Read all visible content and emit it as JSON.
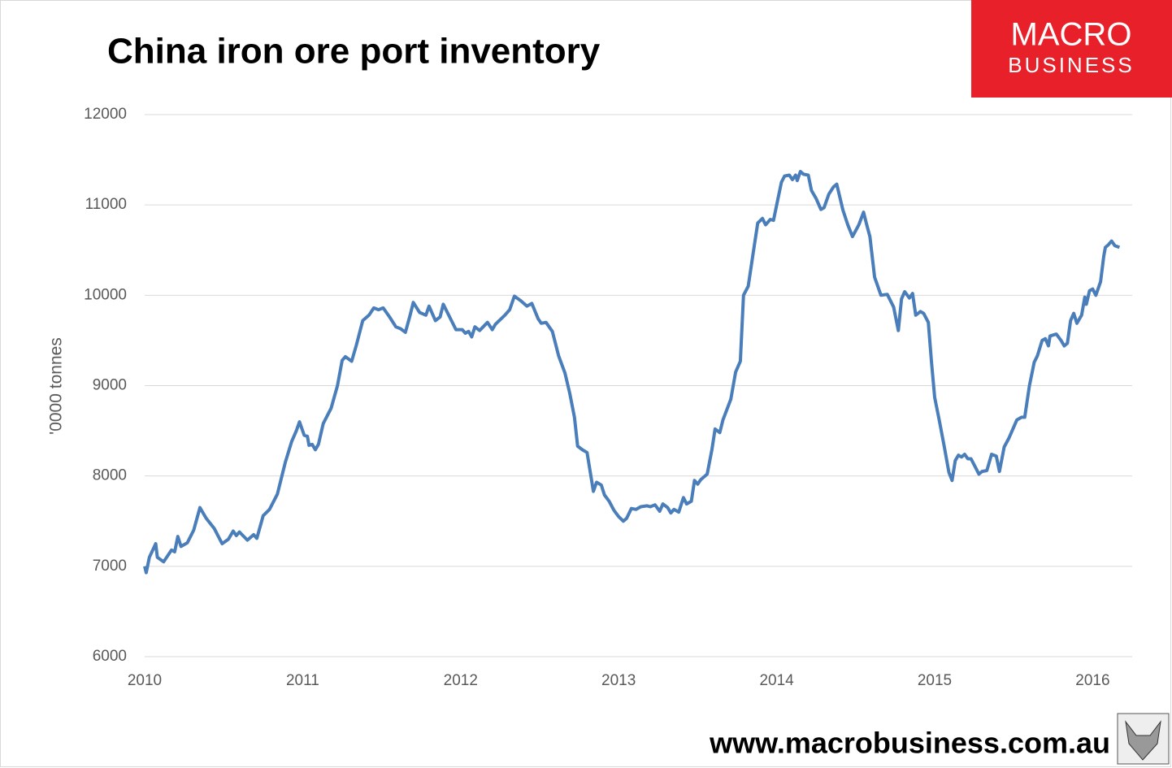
{
  "chart_data": {
    "type": "line",
    "title": "China iron ore port inventory",
    "ylabel": "'0000 tonnes",
    "x": [
      2010.0,
      2010.01,
      2010.03,
      2010.07,
      2010.08,
      2010.12,
      2010.17,
      2010.19,
      2010.21,
      2010.23,
      2010.27,
      2010.31,
      2010.35,
      2010.39,
      2010.44,
      2010.49,
      2010.53,
      2010.56,
      2010.58,
      2010.6,
      2010.65,
      2010.69,
      2010.71,
      2010.75,
      2010.79,
      2010.84,
      2010.89,
      2010.93,
      2010.96,
      2010.98,
      2011.01,
      2011.03,
      2011.04,
      2011.06,
      2011.08,
      2011.1,
      2011.13,
      2011.18,
      2011.22,
      2011.25,
      2011.27,
      2011.31,
      2011.34,
      2011.38,
      2011.42,
      2011.45,
      2011.48,
      2011.51,
      2011.55,
      2011.59,
      2011.62,
      2011.65,
      2011.68,
      2011.7,
      2011.74,
      2011.78,
      2011.8,
      2011.84,
      2011.87,
      2011.89,
      2011.93,
      2011.97,
      2012.01,
      2012.03,
      2012.05,
      2012.07,
      2012.09,
      2012.12,
      2012.17,
      2012.2,
      2012.22,
      2012.28,
      2012.31,
      2012.34,
      2012.38,
      2012.42,
      2012.45,
      2012.49,
      2012.51,
      2012.54,
      2012.58,
      2012.62,
      2012.66,
      2012.69,
      2012.72,
      2012.74,
      2012.77,
      2012.8,
      2012.84,
      2012.86,
      2012.89,
      2012.91,
      2012.94,
      2012.97,
      2013.0,
      2013.03,
      2013.05,
      2013.08,
      2013.11,
      2013.14,
      2013.18,
      2013.2,
      2013.23,
      2013.26,
      2013.28,
      2013.31,
      2013.33,
      2013.35,
      2013.38,
      2013.41,
      2013.43,
      2013.46,
      2013.48,
      2013.5,
      2013.52,
      2013.56,
      2013.59,
      2013.61,
      2013.64,
      2013.66,
      2013.71,
      2013.74,
      2013.77,
      2013.79,
      2013.82,
      2013.85,
      2013.88,
      2013.91,
      2013.93,
      2013.96,
      2013.98,
      2014.0,
      2014.03,
      2014.05,
      2014.08,
      2014.1,
      2014.12,
      2014.13,
      2014.15,
      2014.17,
      2014.2,
      2014.22,
      2014.25,
      2014.28,
      2014.3,
      2014.33,
      2014.36,
      2014.38,
      2014.42,
      2014.45,
      2014.48,
      2014.52,
      2014.55,
      2014.57,
      2014.59,
      2014.62,
      2014.66,
      2014.7,
      2014.74,
      2014.77,
      2014.79,
      2014.81,
      2014.84,
      2014.86,
      2014.88,
      2014.91,
      2014.93,
      2014.96,
      2014.98,
      2015.0,
      2015.03,
      2015.06,
      2015.09,
      2015.11,
      2015.13,
      2015.15,
      2015.17,
      2015.19,
      2015.21,
      2015.23,
      2015.26,
      2015.28,
      2015.3,
      2015.33,
      2015.36,
      2015.39,
      2015.41,
      2015.44,
      2015.47,
      2015.49,
      2015.52,
      2015.55,
      2015.57,
      2015.6,
      2015.63,
      2015.65,
      2015.68,
      2015.7,
      2015.72,
      2015.73,
      2015.77,
      2015.8,
      2015.82,
      2015.84,
      2015.86,
      2015.88,
      2015.9,
      2015.93,
      2015.95,
      2015.96,
      2015.98,
      2016.0,
      2016.02,
      2016.05,
      2016.07,
      2016.08,
      2016.1,
      2016.12,
      2016.14,
      2016.17
    ],
    "series": [
      {
        "name": "Inventory",
        "color": "#4a7ebb",
        "values": [
          7000,
          6930,
          7100,
          7250,
          7100,
          7050,
          7180,
          7160,
          7330,
          7220,
          7260,
          7400,
          7650,
          7530,
          7420,
          7250,
          7300,
          7390,
          7340,
          7380,
          7290,
          7350,
          7310,
          7560,
          7630,
          7800,
          8150,
          8380,
          8500,
          8600,
          8450,
          8440,
          8340,
          8350,
          8290,
          8350,
          8580,
          8750,
          9000,
          9280,
          9320,
          9270,
          9450,
          9720,
          9780,
          9860,
          9840,
          9860,
          9760,
          9650,
          9630,
          9590,
          9780,
          9920,
          9810,
          9780,
          9880,
          9720,
          9760,
          9900,
          9760,
          9620,
          9620,
          9580,
          9600,
          9540,
          9650,
          9610,
          9700,
          9620,
          9680,
          9780,
          9840,
          9990,
          9940,
          9880,
          9910,
          9740,
          9690,
          9700,
          9600,
          9330,
          9140,
          8920,
          8650,
          8330,
          8290,
          8260,
          7830,
          7930,
          7900,
          7790,
          7720,
          7620,
          7550,
          7500,
          7530,
          7640,
          7630,
          7660,
          7670,
          7660,
          7680,
          7610,
          7690,
          7650,
          7590,
          7630,
          7600,
          7760,
          7690,
          7720,
          7950,
          7910,
          7960,
          8020,
          8290,
          8520,
          8480,
          8620,
          8850,
          9150,
          9270,
          10000,
          10100,
          10450,
          10800,
          10850,
          10780,
          10840,
          10830,
          11000,
          11250,
          11320,
          11330,
          11280,
          11330,
          11270,
          11370,
          11340,
          11330,
          11160,
          11070,
          10950,
          10970,
          11120,
          11200,
          11230,
          10940,
          10780,
          10650,
          10780,
          10920,
          10780,
          10650,
          10200,
          10000,
          10010,
          9870,
          9610,
          9960,
          10040,
          9970,
          10020,
          9780,
          9820,
          9800,
          9700,
          9260,
          8870,
          8610,
          8330,
          8040,
          7950,
          8170,
          8230,
          8210,
          8240,
          8190,
          8190,
          8090,
          8020,
          8050,
          8060,
          8240,
          8220,
          8050,
          8320,
          8420,
          8500,
          8620,
          8650,
          8650,
          9000,
          9260,
          9330,
          9500,
          9520,
          9440,
          9550,
          9570,
          9500,
          9440,
          9470,
          9720,
          9800,
          9690,
          9780,
          9980,
          9900,
          10050,
          10070,
          10000,
          10150,
          10430,
          10530,
          10560,
          10600,
          10550,
          10530
        ]
      }
    ],
    "xlim": [
      2010,
      2016.25
    ],
    "xticks": [
      2010,
      2011,
      2012,
      2013,
      2014,
      2015,
      2016
    ],
    "ylim": [
      6000,
      12000
    ],
    "yticks": [
      6000,
      7000,
      8000,
      9000,
      10000,
      11000,
      12000
    ],
    "grid": true
  },
  "logo": {
    "line1": "MACRO",
    "line2": "BUSINESS"
  },
  "footer": "www.macrobusiness.com.au"
}
